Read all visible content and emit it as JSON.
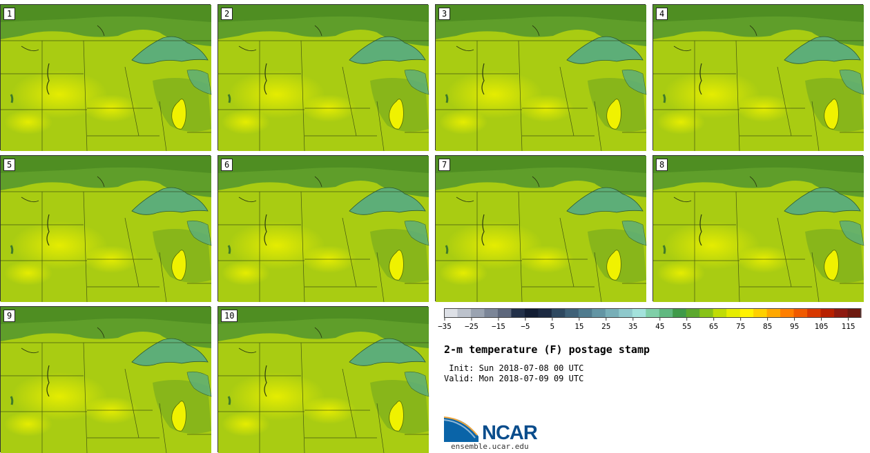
{
  "figure": {
    "title": "2-m temperature (F) postage stamp",
    "init_label": " Init: Sun 2018-07-08 00 UTC",
    "valid_label": "Valid: Mon 2018-07-09 09 UTC",
    "logo_text": "NCAR",
    "url": "ensemble.ucar.edu"
  },
  "panels": [
    {
      "number": "1"
    },
    {
      "number": "2"
    },
    {
      "number": "3"
    },
    {
      "number": "4"
    },
    {
      "number": "5"
    },
    {
      "number": "6"
    },
    {
      "number": "7"
    },
    {
      "number": "8"
    },
    {
      "number": "9"
    },
    {
      "number": "10"
    }
  ],
  "colorbar": {
    "unit": "F",
    "ticks": [
      "−35",
      "−25",
      "−15",
      "−5",
      "5",
      "15",
      "25",
      "35",
      "45",
      "55",
      "65",
      "75",
      "85",
      "95",
      "105",
      "115"
    ],
    "colors": [
      "#dde0e6",
      "#bcc2cc",
      "#9aa3b1",
      "#7b8597",
      "#5d677c",
      "#223049",
      "#121d33",
      "#1c2a42",
      "#2e4860",
      "#3f6178",
      "#4f7b8e",
      "#6395a4",
      "#78afb8",
      "#8fc9cc",
      "#a3e2dc",
      "#7fcfa8",
      "#60b880",
      "#3f9a49",
      "#5ba82e",
      "#88c318",
      "#c0dc05",
      "#e6ed00",
      "#fff200",
      "#ffd000",
      "#ffa800",
      "#ff7f00",
      "#f05a00",
      "#d83800",
      "#b82000",
      "#8e1a10",
      "#6e1a10"
    ]
  }
}
